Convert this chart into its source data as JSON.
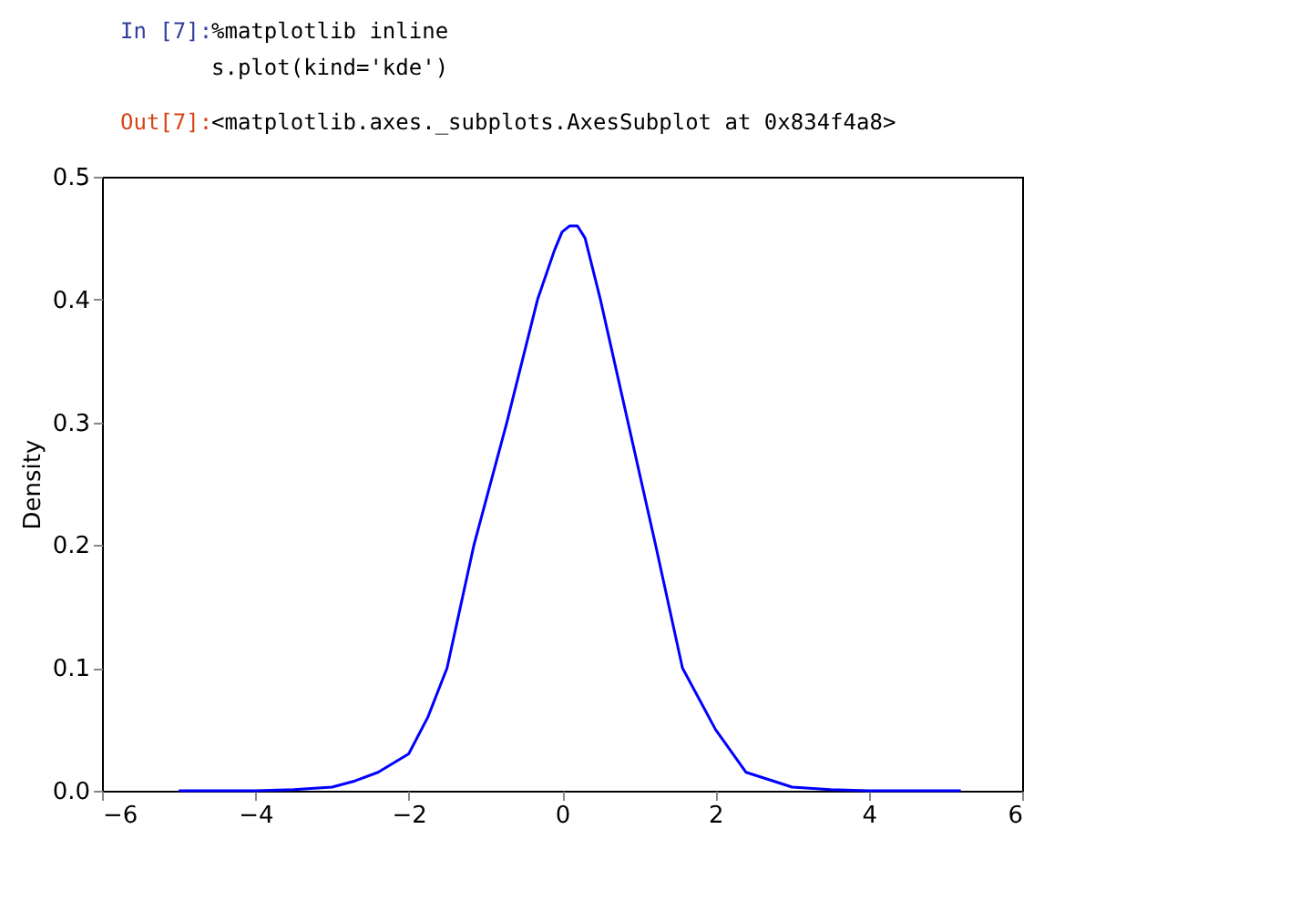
{
  "chart_data": {
    "type": "line",
    "ylabel": "Density",
    "annotations": [
      "In [7]:",
      "%matplotlib inline",
      "s.plot(kind='kde')",
      "Out[7]:",
      "<matplotlib.axes._subplots.AxesSubplot at 0x834f4a8>"
    ],
    "x": [
      -5.0,
      -4.0,
      -3.5,
      -3.0,
      -2.7,
      -2.4,
      -2.0,
      -1.75,
      -1.5,
      -1.15,
      -0.72,
      -0.32,
      -0.1,
      0.0,
      0.1,
      0.2,
      0.3,
      0.5,
      0.86,
      1.22,
      1.57,
      2.0,
      2.4,
      3.0,
      3.5,
      4.0,
      5.2
    ],
    "series": [
      {
        "color": "#0000ff",
        "values": [
          0.0,
          0.0,
          0.001,
          0.003,
          0.008,
          0.015,
          0.03,
          0.06,
          0.1,
          0.2,
          0.3,
          0.4,
          0.44,
          0.455,
          0.46,
          0.46,
          0.45,
          0.4,
          0.3,
          0.2,
          0.1,
          0.05,
          0.015,
          0.003,
          0.001,
          0.0,
          0.0
        ]
      }
    ],
    "xlim": [
      -6,
      6
    ],
    "xticks": [
      -6,
      -4,
      -2,
      0,
      2,
      4,
      6
    ],
    "ylim": [
      0.0,
      0.5
    ],
    "yticks": [
      {
        "value": 0.0,
        "label": "0.0"
      },
      {
        "value": 0.1,
        "label": "0.1"
      },
      {
        "value": 0.2,
        "label": "0.2"
      },
      {
        "value": 0.3,
        "label": "0.3"
      },
      {
        "value": 0.4,
        "label": "0.4"
      },
      {
        "value": 0.5,
        "label": "0.5"
      }
    ],
    "grid": false,
    "marker": "none",
    "line_style": "solid"
  }
}
